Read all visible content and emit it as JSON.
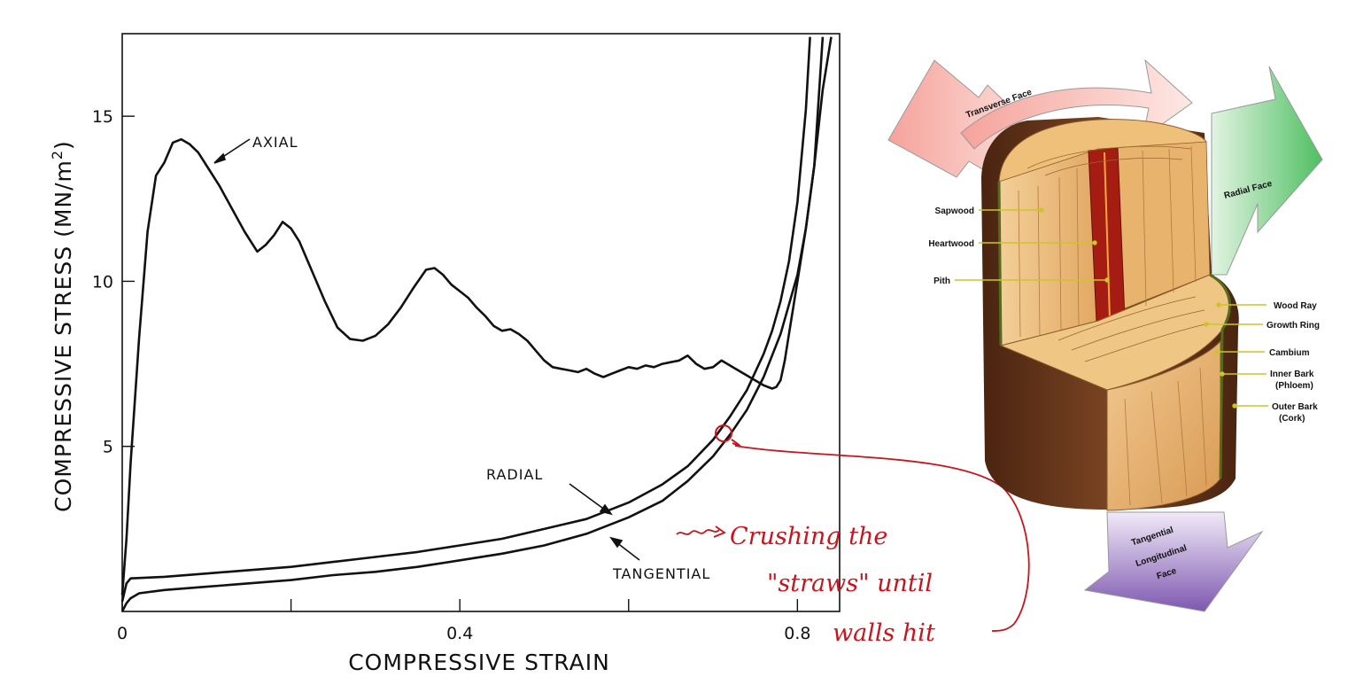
{
  "chart_data": {
    "type": "line",
    "xlabel": "COMPRESSIVE STRAIN",
    "ylabel_main": "COMPRESSIVE STRESS  (MN/m",
    "ylabel_sup": "2",
    "ylabel_close": ")",
    "xlim": [
      0,
      0.85
    ],
    "ylim": [
      0,
      17.5
    ],
    "xticks": [
      0,
      0.2,
      0.4,
      0.6,
      0.8
    ],
    "xtick_labels": [
      "0",
      "",
      "0.4",
      "",
      "0.8"
    ],
    "yticks": [
      5,
      10,
      15
    ],
    "ytick_labels": [
      "5",
      "10",
      "15"
    ],
    "grid": false,
    "series": [
      {
        "name": "AXIAL",
        "x": [
          0,
          0.005,
          0.01,
          0.02,
          0.03,
          0.04,
          0.05,
          0.06,
          0.07,
          0.08,
          0.09,
          0.1,
          0.115,
          0.13,
          0.145,
          0.16,
          0.17,
          0.18,
          0.19,
          0.2,
          0.21,
          0.225,
          0.24,
          0.255,
          0.27,
          0.285,
          0.3,
          0.315,
          0.33,
          0.345,
          0.36,
          0.37,
          0.38,
          0.39,
          0.4,
          0.41,
          0.42,
          0.43,
          0.44,
          0.45,
          0.46,
          0.47,
          0.48,
          0.49,
          0.5,
          0.51,
          0.52,
          0.53,
          0.54,
          0.55,
          0.56,
          0.57,
          0.58,
          0.59,
          0.6,
          0.61,
          0.62,
          0.63,
          0.64,
          0.65,
          0.66,
          0.67,
          0.68,
          0.69,
          0.7,
          0.71,
          0.72,
          0.73,
          0.74,
          0.75,
          0.76,
          0.77,
          0.775,
          0.78,
          0.785,
          0.79,
          0.8,
          0.81,
          0.82,
          0.83,
          0.84
        ],
        "y": [
          0.5,
          2.2,
          4.5,
          8.3,
          11.5,
          13.2,
          13.6,
          14.2,
          14.3,
          14.15,
          13.9,
          13.5,
          12.9,
          12.2,
          11.5,
          10.9,
          11.1,
          11.4,
          11.8,
          11.6,
          11.2,
          10.3,
          9.4,
          8.6,
          8.25,
          8.2,
          8.35,
          8.7,
          9.2,
          9.8,
          10.35,
          10.4,
          10.2,
          9.9,
          9.7,
          9.5,
          9.2,
          8.95,
          8.65,
          8.5,
          8.55,
          8.4,
          8.2,
          7.9,
          7.6,
          7.4,
          7.35,
          7.3,
          7.25,
          7.35,
          7.2,
          7.1,
          7.2,
          7.3,
          7.4,
          7.35,
          7.45,
          7.4,
          7.5,
          7.55,
          7.6,
          7.75,
          7.5,
          7.35,
          7.4,
          7.6,
          7.45,
          7.3,
          7.15,
          7.0,
          6.85,
          6.75,
          6.8,
          7.0,
          7.6,
          8.4,
          10.0,
          11.6,
          13.5,
          15.8,
          17.4
        ]
      },
      {
        "name": "RADIAL",
        "x": [
          0,
          0.005,
          0.01,
          0.05,
          0.1,
          0.15,
          0.2,
          0.25,
          0.3,
          0.35,
          0.4,
          0.45,
          0.5,
          0.55,
          0.6,
          0.64,
          0.67,
          0.7,
          0.72,
          0.74,
          0.76,
          0.77,
          0.78,
          0.79,
          0.8,
          0.81,
          0.815
        ],
        "y": [
          0.3,
          0.85,
          1.0,
          1.05,
          1.15,
          1.25,
          1.35,
          1.5,
          1.65,
          1.8,
          2.0,
          2.2,
          2.5,
          2.8,
          3.3,
          3.85,
          4.4,
          5.2,
          5.9,
          6.7,
          7.8,
          8.5,
          9.4,
          10.6,
          12.4,
          15.2,
          17.4
        ]
      },
      {
        "name": "TANGENTIAL",
        "x": [
          0,
          0.005,
          0.01,
          0.02,
          0.05,
          0.1,
          0.15,
          0.2,
          0.25,
          0.3,
          0.35,
          0.4,
          0.45,
          0.5,
          0.55,
          0.6,
          0.64,
          0.67,
          0.7,
          0.72,
          0.74,
          0.76,
          0.78,
          0.8,
          0.81,
          0.82,
          0.83
        ],
        "y": [
          0.0,
          0.25,
          0.4,
          0.55,
          0.65,
          0.75,
          0.85,
          0.95,
          1.1,
          1.2,
          1.35,
          1.55,
          1.75,
          2.0,
          2.35,
          2.85,
          3.35,
          3.95,
          4.7,
          5.35,
          6.1,
          7.1,
          8.4,
          10.2,
          11.6,
          13.5,
          17.4
        ]
      }
    ],
    "annotations": [
      "AXIAL",
      "RADIAL",
      "TANGENTIAL"
    ]
  },
  "handwritten_note": {
    "line1": "Crushing the",
    "line2": "\"straws\" until",
    "line3": "walls hit"
  },
  "wood_diagram": {
    "faces": {
      "transverse": "Transverse Face",
      "radial": "Radial Face",
      "tangential_1": "Tangential",
      "tangential_2": "Longitudinal",
      "tangential_3": "Face"
    },
    "labels_left": [
      "Sapwood",
      "Heartwood",
      "Pith"
    ],
    "labels_right": [
      "Wood Ray",
      "Growth Ring",
      "Cambium",
      "Inner Bark",
      "(Phloem)",
      "Outer Bark",
      "(Cork)"
    ]
  },
  "colors": {
    "ink": "#111111",
    "annotation": "#c8141c",
    "transverse_arrow": "#f08c84",
    "radial_arrow": "#5cc46a",
    "tangential_arrow": "#8a62b8",
    "leader": "#c9c62a",
    "bark": "#6b3a1e",
    "sapwood": "#e9b878",
    "heartwood": "#a51d12"
  }
}
